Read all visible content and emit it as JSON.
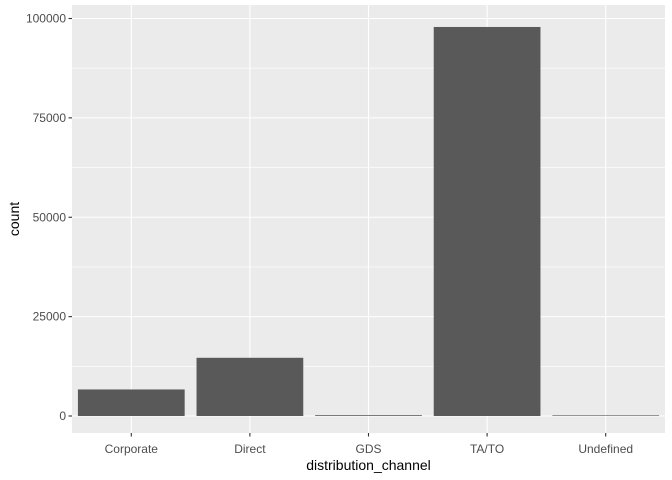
{
  "chart_data": {
    "type": "bar",
    "categories": [
      "Corporate",
      "Direct",
      "GDS",
      "TA/TO",
      "Undefined"
    ],
    "values": [
      6677,
      14645,
      193,
      97870,
      5
    ],
    "xlabel": "distribution_channel",
    "ylabel": "count",
    "ylim": [
      0,
      100000
    ],
    "yticks": [
      0,
      25000,
      50000,
      75000,
      100000
    ],
    "ytick_labels": [
      "0",
      "25000",
      "50000",
      "75000",
      "100000"
    ],
    "grid": true,
    "legend": "none",
    "colors": {
      "bar": "#595959",
      "panel": "#ebebeb",
      "grid": "#ffffff"
    }
  }
}
